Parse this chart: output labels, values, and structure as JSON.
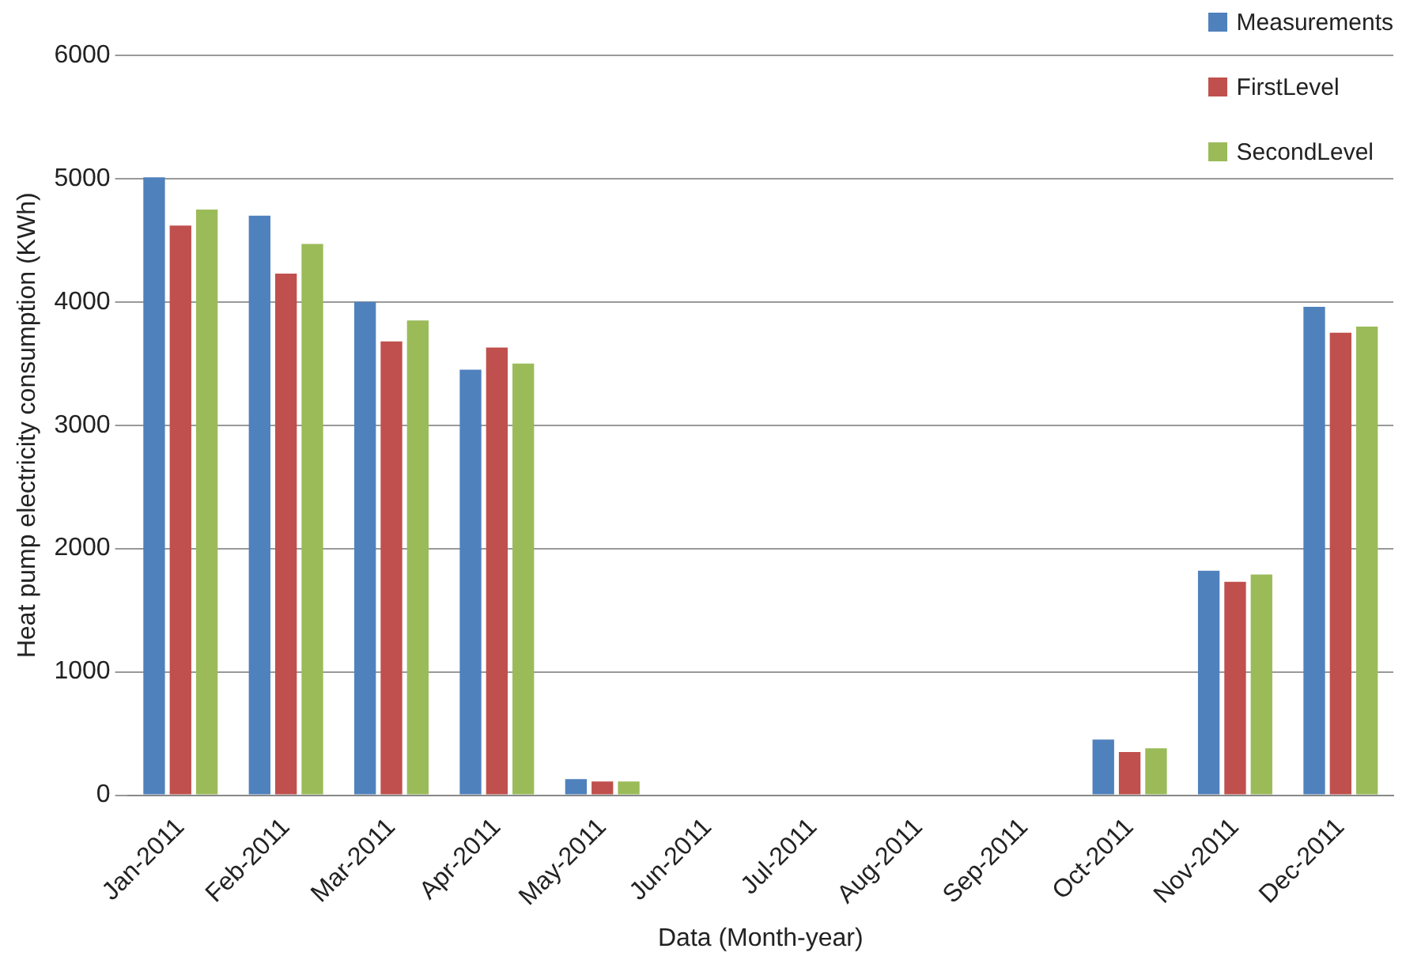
{
  "chart_data": {
    "type": "bar",
    "xlabel": "Data (Month-year)",
    "ylabel": "Heat pump electricity consumption (KWh)",
    "categories": [
      "Jan-2011",
      "Feb-2011",
      "Mar-2011",
      "Apr-2011",
      "May-2011",
      "Jun-2011",
      "Jul-2011",
      "Aug-2011",
      "Sep-2011",
      "Oct-2011",
      "Nov-2011",
      "Dec-2011"
    ],
    "series": [
      {
        "name": "Measurements",
        "color": "#4f81bd",
        "values": [
          5010,
          4700,
          4000,
          3450,
          130,
          0,
          0,
          0,
          0,
          450,
          1820,
          3960
        ]
      },
      {
        "name": "FirstLevel",
        "color": "#c0504d",
        "values": [
          4620,
          4230,
          3680,
          3630,
          110,
          0,
          0,
          0,
          0,
          350,
          1730,
          3750
        ]
      },
      {
        "name": "SecondLevel",
        "color": "#9bbb59",
        "values": [
          4750,
          4470,
          3850,
          3500,
          110,
          0,
          0,
          0,
          0,
          380,
          1790,
          3800
        ]
      }
    ],
    "ylim": [
      0,
      6000
    ],
    "yticks": [
      0,
      1000,
      2000,
      3000,
      4000,
      5000,
      6000
    ],
    "grid": "y",
    "legend": "top right"
  }
}
